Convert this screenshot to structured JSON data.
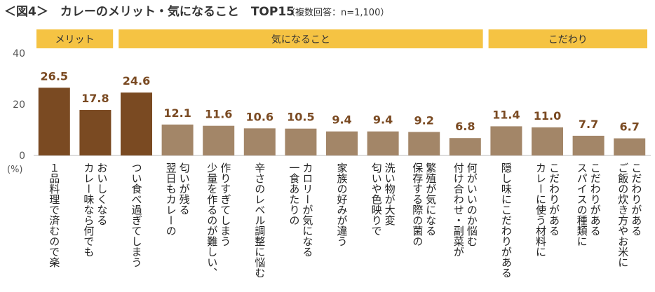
{
  "chart_data": {
    "type": "bar",
    "title": "＜図4＞　カレーのメリット・気になること　TOP15",
    "subtitle": "（複数回答：n=1,100）",
    "y_label": "(%)",
    "groups": [
      "メリット",
      "気になること",
      "こだわり"
    ],
    "group_color": "#f5c343",
    "categories": [
      [
        "１品料理で済むので楽"
      ],
      [
        "カレー味なら何でも",
        "おいしくなる"
      ],
      [
        "つい食べ過ぎてしまう"
      ],
      [
        "翌日もカレーの",
        "匂いが残る"
      ],
      [
        "少量を作るのが難しい、",
        "作りすぎてしまう"
      ],
      [
        "辛さのレベル調整に悩む"
      ],
      [
        "一食あたりの",
        "カロリーが気になる"
      ],
      [
        "家族の好みが違う"
      ],
      [
        "匂いや色映りで",
        "洗い物が大変"
      ],
      [
        "保存する際の菌の",
        "繁殖が気になる"
      ],
      [
        "付け合わせ・副菜が",
        "何がいいのか悩む"
      ],
      [
        "隠し味にこだわりがある"
      ],
      [
        "カレーに使う材料に",
        "こだわりがある"
      ],
      [
        "スパイスの種類に",
        "こだわりがある"
      ],
      [
        "ご飯の炊き方やお米に",
        "こだわりがある"
      ]
    ],
    "values": [
      26.5,
      17.8,
      24.6,
      12.1,
      11.6,
      10.6,
      10.5,
      9.4,
      9.4,
      9.2,
      6.8,
      11.4,
      11.0,
      7.7,
      6.7
    ],
    "value_labels": [
      "26.5",
      "17.8",
      "24.6",
      "12.1",
      "11.6",
      "10.6",
      "10.5",
      "9.4",
      "9.4",
      "9.2",
      "6.8",
      "11.4",
      "11.0",
      "7.7",
      "6.7"
    ],
    "colors": [
      "#7a4a22",
      "#7a4a22",
      "#7a4a22",
      "#a38668",
      "#a38668",
      "#a38668",
      "#a38668",
      "#a38668",
      "#a38668",
      "#a38668",
      "#a38668",
      "#a38668",
      "#a38668",
      "#a38668",
      "#a38668"
    ],
    "ylim": [
      0,
      40
    ],
    "yticks": [
      0,
      20,
      40
    ],
    "grid": false
  }
}
